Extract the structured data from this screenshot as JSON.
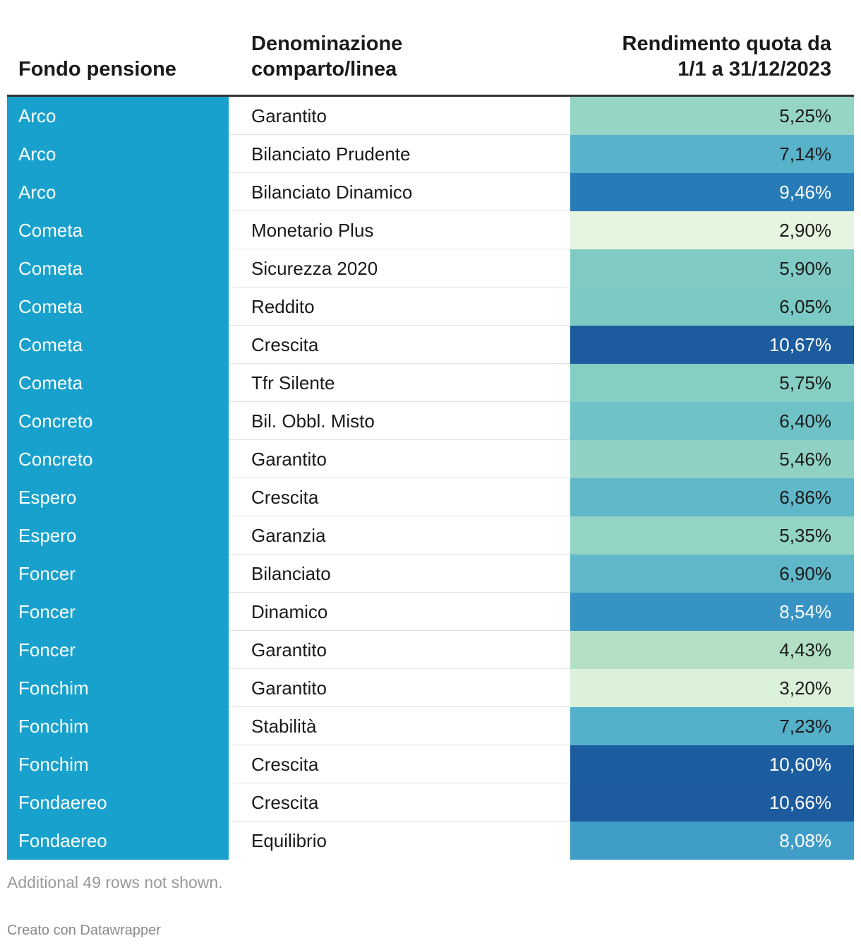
{
  "chart_data": {
    "type": "table",
    "columns": [
      "Fondo pensione",
      "Denominazione\ncomparto/linea",
      "Rendimento quota da\n1/1 a 31/12/2023"
    ],
    "rows": [
      {
        "fondo": "Arco",
        "comparto": "Garantito",
        "rendimento": "5,25%",
        "value": 5.25
      },
      {
        "fondo": "Arco",
        "comparto": "Bilanciato Prudente",
        "rendimento": "7,14%",
        "value": 7.14
      },
      {
        "fondo": "Arco",
        "comparto": "Bilanciato Dinamico",
        "rendimento": "9,46%",
        "value": 9.46
      },
      {
        "fondo": "Cometa",
        "comparto": "Monetario Plus",
        "rendimento": "2,90%",
        "value": 2.9
      },
      {
        "fondo": "Cometa",
        "comparto": "Sicurezza 2020",
        "rendimento": "5,90%",
        "value": 5.9
      },
      {
        "fondo": "Cometa",
        "comparto": "Reddito",
        "rendimento": "6,05%",
        "value": 6.05
      },
      {
        "fondo": "Cometa",
        "comparto": "Crescita",
        "rendimento": "10,67%",
        "value": 10.67
      },
      {
        "fondo": "Cometa",
        "comparto": "Tfr Silente",
        "rendimento": "5,75%",
        "value": 5.75
      },
      {
        "fondo": "Concreto",
        "comparto": "Bil. Obbl. Misto",
        "rendimento": "6,40%",
        "value": 6.4
      },
      {
        "fondo": "Concreto",
        "comparto": "Garantito",
        "rendimento": "5,46%",
        "value": 5.46
      },
      {
        "fondo": "Espero",
        "comparto": "Crescita",
        "rendimento": "6,86%",
        "value": 6.86
      },
      {
        "fondo": "Espero",
        "comparto": "Garanzia",
        "rendimento": "5,35%",
        "value": 5.35
      },
      {
        "fondo": "Foncer",
        "comparto": "Bilanciato",
        "rendimento": "6,90%",
        "value": 6.9
      },
      {
        "fondo": "Foncer",
        "comparto": "Dinamico",
        "rendimento": "8,54%",
        "value": 8.54
      },
      {
        "fondo": "Foncer",
        "comparto": "Garantito",
        "rendimento": "4,43%",
        "value": 4.43
      },
      {
        "fondo": "Fonchim",
        "comparto": "Garantito",
        "rendimento": "3,20%",
        "value": 3.2
      },
      {
        "fondo": "Fonchim",
        "comparto": "Stabilità",
        "rendimento": "7,23%",
        "value": 7.23
      },
      {
        "fondo": "Fonchim",
        "comparto": "Crescita",
        "rendimento": "10,60%",
        "value": 10.6
      },
      {
        "fondo": "Fondaereo",
        "comparto": "Crescita",
        "rendimento": "10,66%",
        "value": 10.66
      },
      {
        "fondo": "Fondaereo",
        "comparto": "Equilibrio",
        "rendimento": "8,08%",
        "value": 8.08
      }
    ],
    "color_scale": {
      "domain": [
        2.9,
        10.67
      ],
      "stops": [
        "#e6f5df",
        "#b2e0c4",
        "#7ccbc4",
        "#4aa9cc",
        "#2b86c0",
        "#1b5b9e"
      ]
    }
  },
  "footer": {
    "note": "Additional 49 rows not shown.",
    "credit": "Creato con Datawrapper"
  }
}
